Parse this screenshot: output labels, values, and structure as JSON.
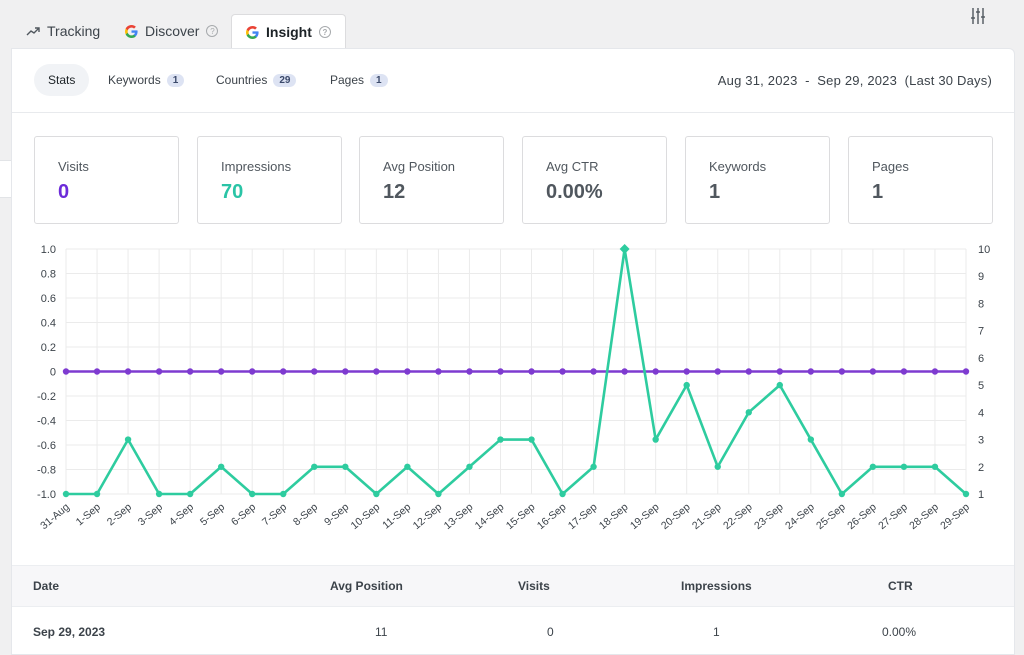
{
  "tabs": [
    {
      "label": "Tracking",
      "icon": "trend-arrow-icon"
    },
    {
      "label": "Discover",
      "icon": "google-icon"
    },
    {
      "label": "Insight",
      "icon": "google-icon"
    }
  ],
  "subtabs": [
    {
      "label": "Stats"
    },
    {
      "label": "Keywords",
      "count": "1"
    },
    {
      "label": "Countries",
      "count": "29"
    },
    {
      "label": "Pages",
      "count": "1"
    }
  ],
  "date_range": "Aug 31, 2023  -  Sep 29, 2023  (Last 30 Days)",
  "cards": [
    {
      "label": "Visits",
      "value": "0",
      "color": "#6c2bd9"
    },
    {
      "label": "Impressions",
      "value": "70",
      "color": "#2ac4a6"
    },
    {
      "label": "Avg Position",
      "value": "12",
      "color": "#50575e"
    },
    {
      "label": "Avg CTR",
      "value": "0.00%",
      "color": "#50575e"
    },
    {
      "label": "Keywords",
      "value": "1",
      "color": "#50575e"
    },
    {
      "label": "Pages",
      "value": "1",
      "color": "#50575e"
    }
  ],
  "chart_data": {
    "type": "line",
    "x": [
      "31-Aug",
      "1-Sep",
      "2-Sep",
      "3-Sep",
      "4-Sep",
      "5-Sep",
      "6-Sep",
      "7-Sep",
      "8-Sep",
      "9-Sep",
      "10-Sep",
      "11-Sep",
      "12-Sep",
      "13-Sep",
      "14-Sep",
      "15-Sep",
      "16-Sep",
      "17-Sep",
      "18-Sep",
      "19-Sep",
      "20-Sep",
      "21-Sep",
      "22-Sep",
      "23-Sep",
      "24-Sep",
      "25-Sep",
      "26-Sep",
      "27-Sep",
      "28-Sep",
      "29-Sep"
    ],
    "series": [
      {
        "axis": "left",
        "color": "#7e3bd0",
        "values": [
          0,
          0,
          0,
          0,
          0,
          0,
          0,
          0,
          0,
          0,
          0,
          0,
          0,
          0,
          0,
          0,
          0,
          0,
          0,
          0,
          0,
          0,
          0,
          0,
          0,
          0,
          0,
          0,
          0,
          0
        ]
      },
      {
        "axis": "right",
        "color": "#2ecc9f",
        "values": [
          1,
          1,
          3,
          1,
          1,
          2,
          1,
          1,
          2,
          2,
          1,
          2,
          1,
          2,
          3,
          3,
          1,
          2,
          10,
          3,
          5,
          2,
          4,
          5,
          3,
          1,
          2,
          2,
          2,
          1
        ]
      }
    ],
    "left_ylim": [
      -1.0,
      1.0
    ],
    "left_ticks": [
      "1.0",
      "0.8",
      "0.6",
      "0.4",
      "0.2",
      "0",
      "-0.2",
      "-0.4",
      "-0.6",
      "-0.8",
      "-1.0"
    ],
    "right_ylim": [
      1,
      10
    ],
    "right_ticks": [
      "10",
      "9",
      "8",
      "7",
      "6",
      "5",
      "4",
      "3",
      "2",
      "1"
    ],
    "grid": true
  },
  "table": {
    "headers": [
      "Date",
      "Avg Position",
      "Visits",
      "Impressions",
      "CTR"
    ],
    "rows": [
      [
        "Sep 29, 2023",
        "11",
        "0",
        "1",
        "0.00%"
      ]
    ]
  }
}
